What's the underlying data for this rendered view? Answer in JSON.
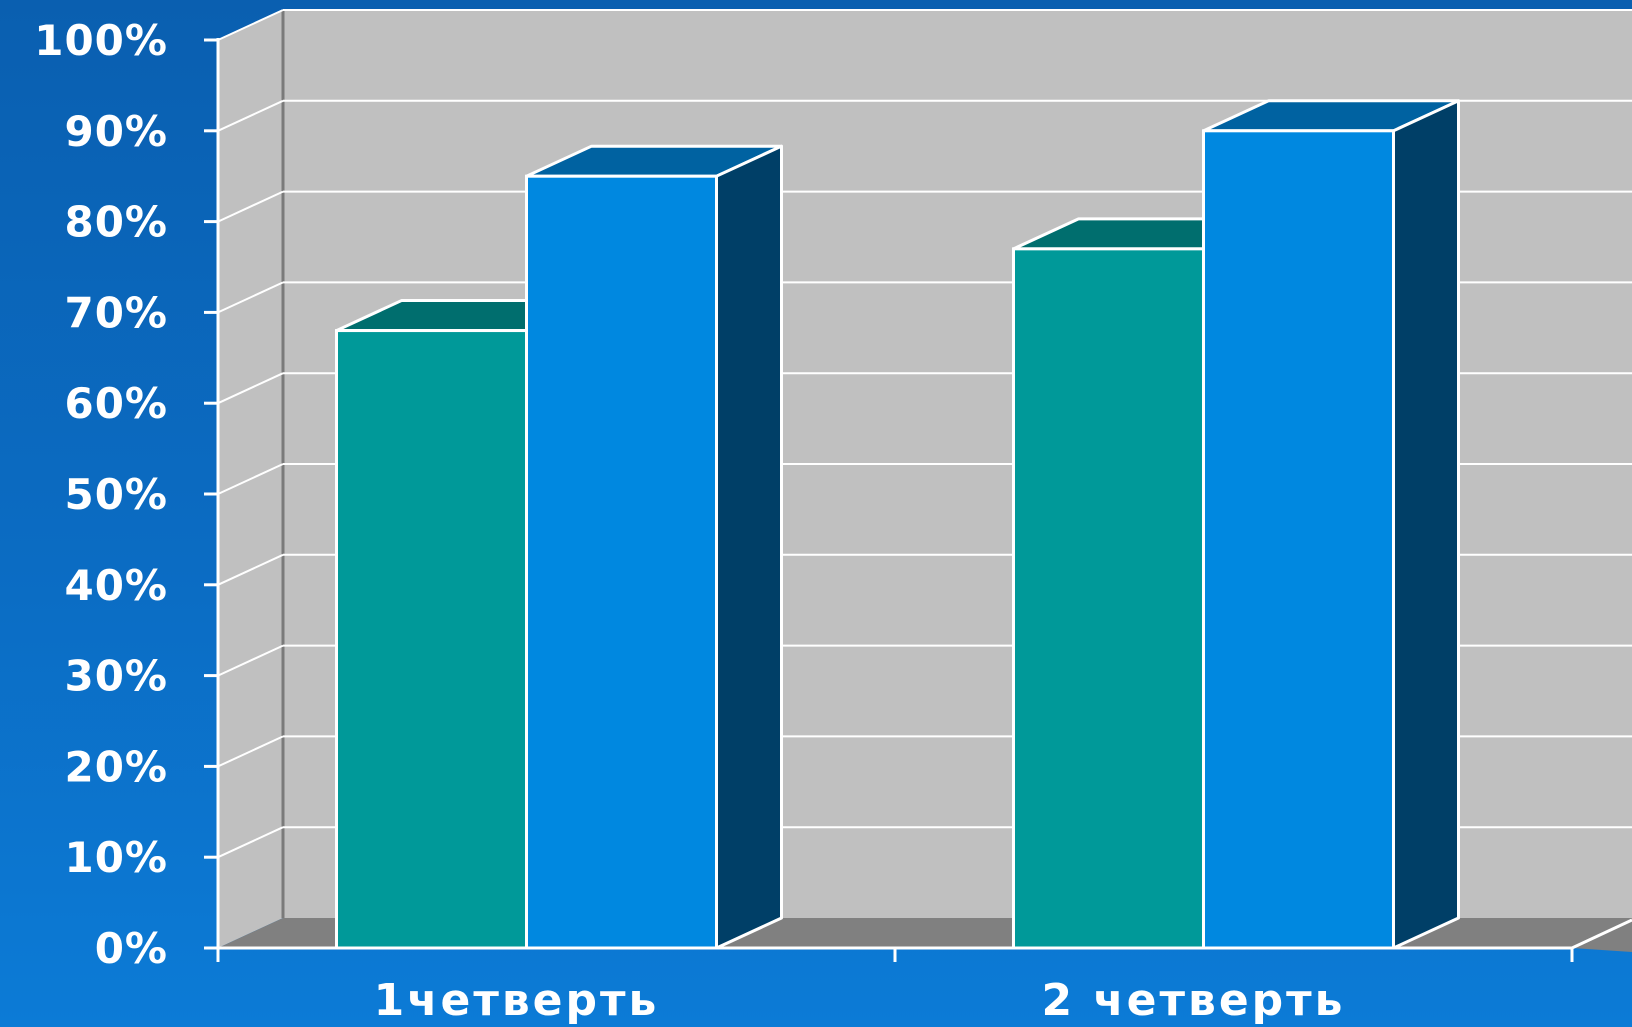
{
  "chart_data": {
    "type": "bar",
    "categories": [
      "1четверть",
      "2 четверть"
    ],
    "series": [
      {
        "values": [
          68,
          77
        ],
        "color": "#009999"
      },
      {
        "values": [
          85,
          90
        ],
        "color": "#0088e0"
      }
    ],
    "ylim": [
      0,
      100
    ],
    "yticks": [
      "0%",
      "10%",
      "20%",
      "30%",
      "40%",
      "50%",
      "60%",
      "70%",
      "80%",
      "90%",
      "100%"
    ],
    "grid": true,
    "legend": "none",
    "colors": {
      "wall": "#c0c0c0",
      "floor": "#808080",
      "gridline": "#ffffff",
      "text": "#ffffff",
      "background": "#0b6cc3"
    }
  }
}
